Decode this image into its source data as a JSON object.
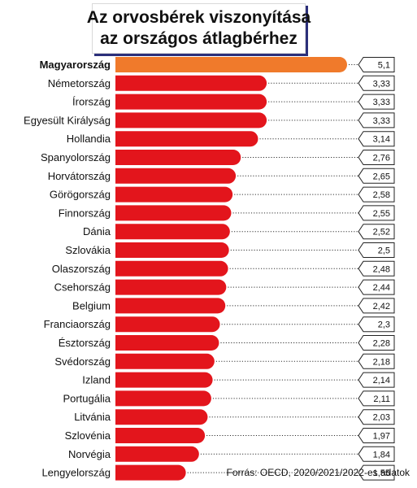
{
  "title": {
    "line1": "Az orvosbérek viszonyítása",
    "line2": "az országos átlagbérhez"
  },
  "source": "Forrás: OECD, 2020/2021/2022-es adatok",
  "colors": {
    "highlight": "#f07a2b",
    "bar": "#e3151c",
    "label_border": "#222222"
  },
  "chart_data": {
    "type": "bar",
    "orientation": "horizontal",
    "title": "Az orvosbérek viszonyítása az országos átlagbérhez",
    "highlight_index": 0,
    "categories": [
      "Magyarország",
      "Németország",
      "Írország",
      "Egyesült Királyság",
      "Hollandia",
      "Spanyolország",
      "Horvátország",
      "Görögország",
      "Finnország",
      "Dánia",
      "Szlovákia",
      "Olaszország",
      "Csehország",
      "Belgium",
      "Franciaország",
      "Észtország",
      "Svédország",
      "Izland",
      "Portugália",
      "Litvánia",
      "Szlovénia",
      "Norvégia",
      "Lengyelország"
    ],
    "values": [
      5.1,
      3.33,
      3.33,
      3.33,
      3.14,
      2.76,
      2.65,
      2.58,
      2.55,
      2.52,
      2.5,
      2.48,
      2.44,
      2.42,
      2.3,
      2.28,
      2.18,
      2.14,
      2.11,
      2.03,
      1.97,
      1.84,
      1.55
    ],
    "value_labels": [
      "5,1",
      "3,33",
      "3,33",
      "3,33",
      "3,14",
      "2,76",
      "2,65",
      "2,58",
      "2,55",
      "2,52",
      "2,5",
      "2,48",
      "2,44",
      "2,42",
      "2,3",
      "2,28",
      "2,18",
      "2,14",
      "2,11",
      "2,03",
      "1,97",
      "1,84",
      "1,55"
    ],
    "xlim": [
      0,
      5.1
    ],
    "grid": false,
    "legend": "none"
  }
}
